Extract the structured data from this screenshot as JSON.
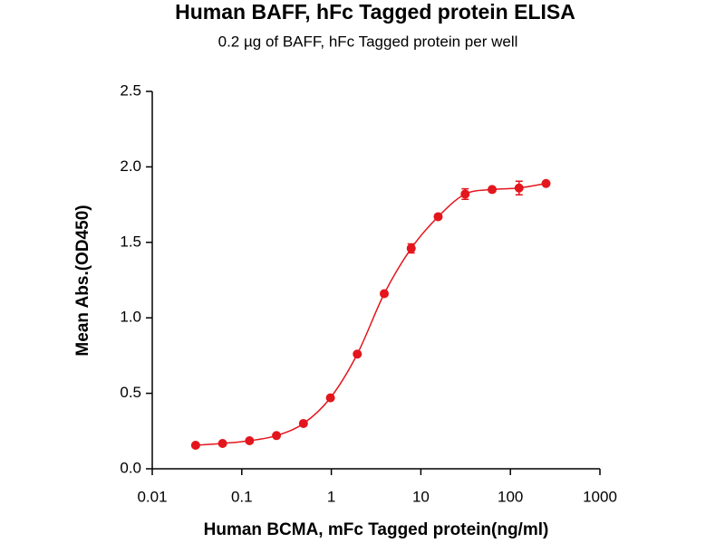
{
  "chart_data": {
    "type": "scatter",
    "title": "Human BAFF, hFc Tagged protein ELISA",
    "subtitle": "0.2 µg of BAFF, hFc Tagged protein per well",
    "x_label": "Human BCMA, mFc Tagged protein(ng/ml)",
    "y_label": "Mean Abs.(OD450)",
    "xscale": "log",
    "xlim": [
      0.01,
      1000
    ],
    "xticks": [
      0.01,
      0.1,
      1,
      10,
      100,
      1000
    ],
    "ylim": [
      0,
      2.5
    ],
    "yticks": [
      {
        "value": 0,
        "label": "0.0"
      },
      0.5,
      {
        "value": 1,
        "label": "1.0"
      },
      1.5,
      {
        "value": 2,
        "label": "2.0"
      },
      2.5
    ],
    "grid": false,
    "curve": "smooth",
    "series": [
      {
        "color": "#e3161d",
        "x": [
          0.0305,
          0.061,
          0.122,
          0.244,
          0.488,
          0.977,
          1.95,
          3.9,
          7.8,
          15.6,
          31.25,
          62.5,
          125,
          250
        ],
        "values": [
          0.156,
          0.168,
          0.186,
          0.22,
          0.3,
          0.47,
          0.76,
          1.16,
          1.46,
          1.67,
          1.82,
          1.85,
          1.86,
          1.89
        ],
        "errors": [
          0.01,
          0.01,
          0.01,
          0.01,
          0.01,
          0.01,
          0.015,
          0.015,
          0.03,
          0.015,
          0.035,
          0.015,
          0.045,
          0.01
        ]
      }
    ]
  }
}
